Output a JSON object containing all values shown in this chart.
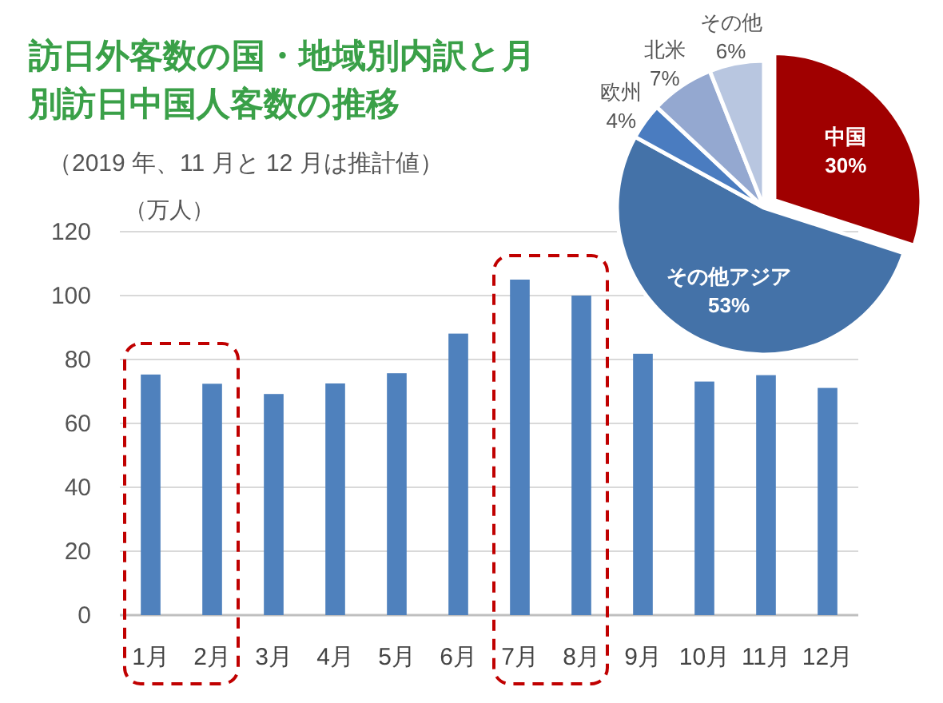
{
  "chart_data": [
    {
      "type": "bar",
      "title": "訪日外客数の国・地域別内訳と月別訪日中国人客数の推移",
      "subtitle": "（2019 年、11 月と 12 月は推計値）",
      "ylabel": "（万人）",
      "categories": [
        "1月",
        "2月",
        "3月",
        "4月",
        "5月",
        "6月",
        "7月",
        "8月",
        "9月",
        "10月",
        "11月",
        "12月"
      ],
      "values": [
        75.3,
        72.4,
        69.2,
        72.5,
        75.7,
        88.1,
        105.0,
        100.0,
        81.8,
        73.1,
        75.1,
        71.1
      ],
      "color": "#4f81bd",
      "ylim": [
        0,
        120
      ],
      "yticks": [
        0,
        20,
        40,
        60,
        80,
        100,
        120
      ],
      "grid": "y"
    },
    {
      "type": "pie",
      "categories": [
        "中国",
        "その他アジア",
        "欧州",
        "北米",
        "その他"
      ],
      "values": [
        30,
        53,
        4,
        7,
        6
      ],
      "colors": [
        "#a00000",
        "#4472a8",
        "#4a7cc0",
        "#94a8d0",
        "#b8c6e0"
      ],
      "value_labels": [
        "30%",
        "53%",
        "4%",
        "7%",
        "6%"
      ]
    }
  ]
}
